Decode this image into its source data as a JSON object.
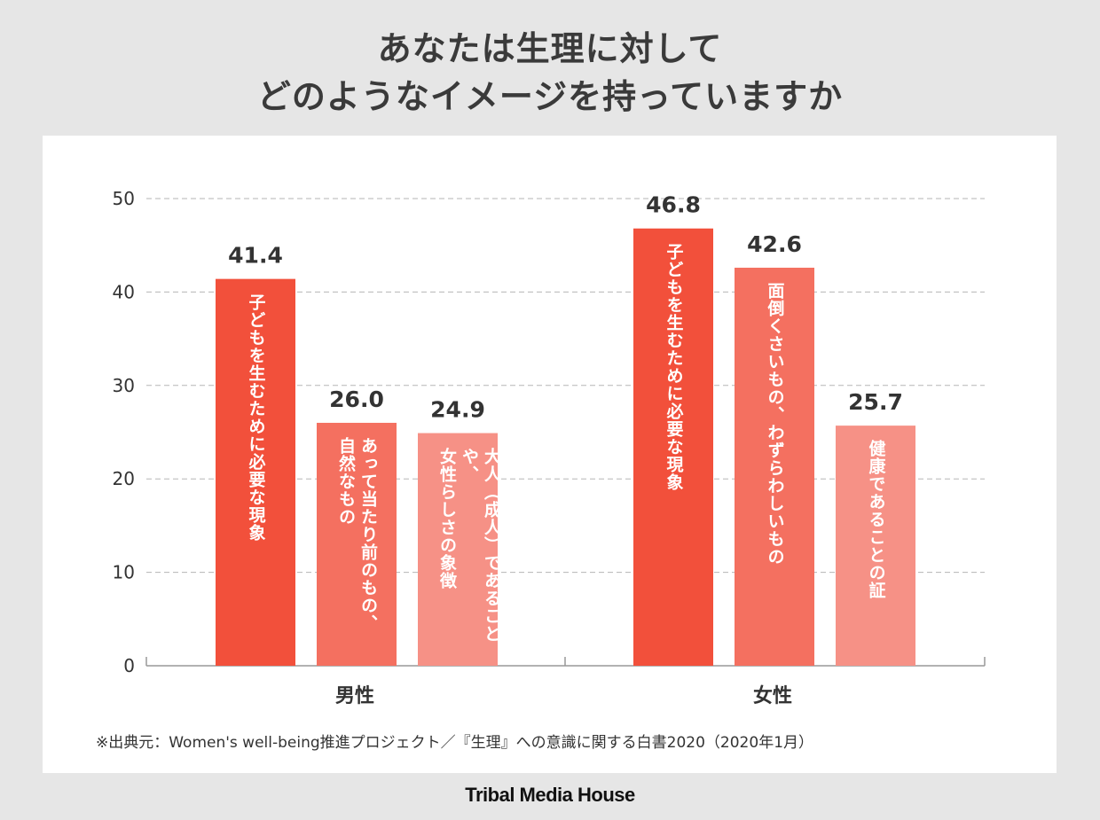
{
  "title_lines": [
    "あなたは生理に対して",
    "どのようなイメージを持っていますか"
  ],
  "chart_data": {
    "type": "bar",
    "title": "あなたは生理に対して どのようなイメージを持っていますか",
    "ylim": [
      0,
      50
    ],
    "yticks": [
      0,
      10,
      20,
      30,
      40,
      50
    ],
    "grid": true,
    "groups": [
      {
        "name": "男性",
        "bars": [
          {
            "label": "子どもを生むために必要な現象",
            "value": 41.4,
            "value_text": "41.4",
            "color": "#f2503b"
          },
          {
            "label": "あって当たり前のもの、\n自然なもの",
            "value": 26.0,
            "value_text": "26.0",
            "color": "#f47060"
          },
          {
            "label": "大人︵成人︶であることや、\n女性らしさの象徴",
            "value": 24.9,
            "value_text": "24.9",
            "color": "#f69186"
          }
        ]
      },
      {
        "name": "女性",
        "bars": [
          {
            "label": "子どもを生むために必要な現象",
            "value": 46.8,
            "value_text": "46.8",
            "color": "#f2503b"
          },
          {
            "label": "面倒くさいもの、わずらわしいもの",
            "value": 42.6,
            "value_text": "42.6",
            "color": "#f47060"
          },
          {
            "label": "健康であることの証",
            "value": 25.7,
            "value_text": "25.7",
            "color": "#f69186"
          }
        ]
      }
    ]
  },
  "source": "※出典元：Women's well-being推進プロジェクト／『生理』への意識に関する白書2020（2020年1月）",
  "brand": "Tribal Media House",
  "colors": {
    "background": "#e6e6e6",
    "panel": "#ffffff",
    "grid": "#b5b5b5",
    "axis": "#999999"
  }
}
